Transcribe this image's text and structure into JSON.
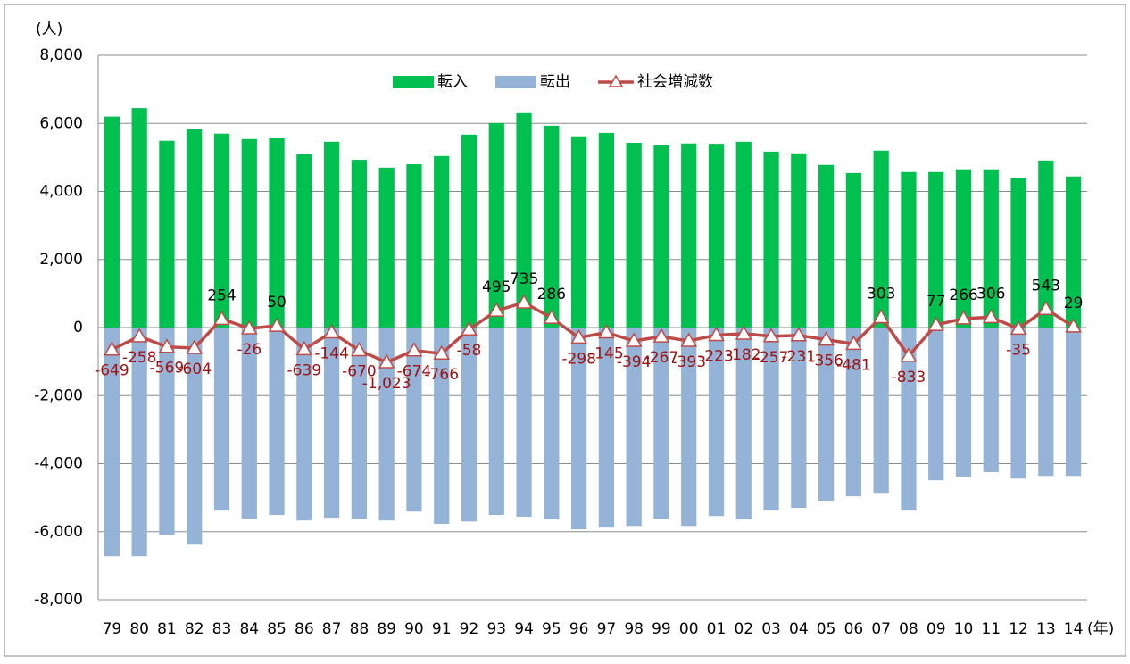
{
  "chart_data": {
    "type": "bar",
    "y_unit_label": "(人)",
    "x_unit_label": "(年)",
    "categories": [
      "79",
      "80",
      "81",
      "82",
      "83",
      "84",
      "85",
      "86",
      "87",
      "88",
      "89",
      "90",
      "91",
      "92",
      "93",
      "94",
      "95",
      "96",
      "97",
      "98",
      "99",
      "00",
      "01",
      "02",
      "03",
      "04",
      "05",
      "06",
      "07",
      "08",
      "09",
      "10",
      "11",
      "12",
      "13",
      "14"
    ],
    "series": [
      {
        "name": "転入",
        "type": "bar",
        "color": "#00c050",
        "values": [
          6200,
          6450,
          5490,
          5830,
          5700,
          5540,
          5560,
          5090,
          5460,
          4930,
          4700,
          4800,
          5040,
          5670,
          6010,
          6300,
          5930,
          5620,
          5720,
          5430,
          5350,
          5410,
          5400,
          5460,
          5170,
          5120,
          4780,
          4540,
          5200,
          4570,
          4570,
          4650,
          4650,
          4380,
          4910,
          4440
        ]
      },
      {
        "name": "転出",
        "type": "bar",
        "color": "#95b3d7",
        "values": [
          -6720,
          -6720,
          -6090,
          -6380,
          -5380,
          -5620,
          -5510,
          -5670,
          -5590,
          -5620,
          -5670,
          -5410,
          -5770,
          -5700,
          -5510,
          -5560,
          -5640,
          -5930,
          -5880,
          -5830,
          -5620,
          -5830,
          -5540,
          -5640,
          -5380,
          -5300,
          -5090,
          -4960,
          -4860,
          -5380,
          -4490,
          -4380,
          -4250,
          -4440,
          -4360,
          -4360
        ]
      },
      {
        "name": "社会増減数",
        "type": "line",
        "color": "#be4b48",
        "values": [
          -649,
          -258,
          -569,
          -604,
          254,
          -26,
          50,
          -639,
          -144,
          -670,
          -1023,
          -674,
          -766,
          -58,
          495,
          735,
          286,
          -298,
          -145,
          -394,
          -267,
          -393,
          -223,
          -182,
          -257,
          -231,
          -356,
          -481,
          303,
          -833,
          77,
          266,
          306,
          -35,
          543,
          29
        ],
        "value_labels": [
          "-649",
          "-258",
          "-569",
          "-604",
          "254",
          "-26",
          "50",
          "-639",
          "-144",
          "-670",
          "-1,023",
          "-674",
          "-766",
          "-58",
          "495",
          "735",
          "286",
          "-298",
          "-145",
          "-394",
          "-267",
          "-393",
          "-223",
          "-182",
          "-257",
          "-231",
          "-356",
          "-481",
          "303",
          "-833",
          "77",
          "266",
          "306",
          "-35",
          "543",
          "29"
        ]
      }
    ],
    "ylim": [
      -8000,
      8000
    ],
    "yticks": [
      {
        "value": -8000,
        "label": "-8,000"
      },
      {
        "value": -6000,
        "label": "-6,000"
      },
      {
        "value": -4000,
        "label": "-4,000"
      },
      {
        "value": -2000,
        "label": "-2,000"
      },
      0,
      {
        "value": 2000,
        "label": "2,000"
      },
      {
        "value": 4000,
        "label": "4,000"
      },
      {
        "value": 6000,
        "label": "6,000"
      },
      {
        "value": 8000,
        "label": "8,000"
      }
    ],
    "grid": true,
    "legend": "top"
  }
}
